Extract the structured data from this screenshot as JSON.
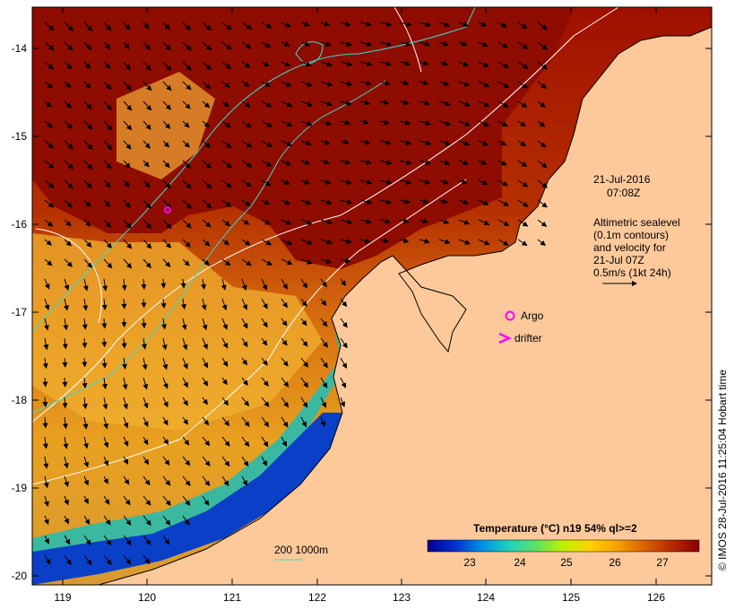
{
  "map": {
    "longitude_ticks": [
      "119",
      "120",
      "121",
      "122",
      "123",
      "124",
      "125",
      "126"
    ],
    "latitude_ticks": [
      "-14",
      "-15",
      "-16",
      "-17",
      "-18",
      "-19",
      "-20"
    ],
    "land_color": "#fdc99b",
    "warm_water_color": "#a01000"
  },
  "annotations": {
    "date": "21-Jul-2016",
    "time": "07:08Z",
    "altimetry_lines": [
      "Altimetric sealevel",
      "(0.1m contours)",
      "and velocity for",
      "21-Jul 07Z",
      "0.5m/s (1kt 24h)"
    ],
    "argo_label": "Argo",
    "drifter_label": "drifter",
    "depth_legend": "200  1000m",
    "credit": "© IMOS 28-Jul-2016 11:25:04 Hobart time"
  },
  "colorbar": {
    "title": "Temperature (°C) n19 54% ql>=2",
    "ticks": [
      "23",
      "24",
      "25",
      "26",
      "27"
    ],
    "stops": [
      "#00008b",
      "#0030d0",
      "#0090e0",
      "#20d0c0",
      "#60e060",
      "#c0f000",
      "#ffd000",
      "#f5a000",
      "#d86000",
      "#b82800",
      "#8b0000"
    ]
  }
}
